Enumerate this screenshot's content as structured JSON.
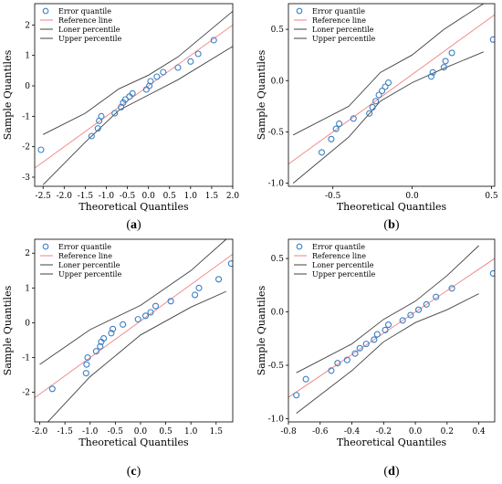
{
  "colors": {
    "marker": "#3a7fc4",
    "reference": "#f08080",
    "bounds": "#404040",
    "frame": "#000000"
  },
  "chart_data": [
    {
      "panel": "(a)",
      "panel_letter": "a",
      "type": "scatter",
      "xlabel": "Theoretical Quantiles",
      "ylabel": "Sample Quantiles",
      "xlim": [
        -2.7,
        2.0
      ],
      "ylim": [
        -3.3,
        2.7
      ],
      "xticks": [
        -2.5,
        -2.0,
        -1.5,
        -1.0,
        -0.5,
        0.0,
        0.5,
        1.0,
        1.5,
        2.0
      ],
      "yticks": [
        -3,
        -2,
        -1,
        0,
        1,
        2
      ],
      "tick_decimals_x": 1,
      "tick_decimals_y": 0,
      "legend": [
        "Error quantile",
        "Reference line",
        "Loner percentile",
        "Upper percentile"
      ],
      "legend_position": "top-left",
      "reference_line": {
        "slope": 1.0,
        "intercept": 0.0
      },
      "band": {
        "lower": [
          [
            -2.5,
            -3.25
          ],
          [
            -1.5,
            -1.85
          ],
          [
            -0.7,
            -0.8
          ],
          [
            0.0,
            -0.3
          ],
          [
            0.7,
            0.2
          ],
          [
            2.0,
            1.3
          ]
        ],
        "upper": [
          [
            -2.5,
            -1.6
          ],
          [
            -1.5,
            -0.9
          ],
          [
            -0.7,
            -0.1
          ],
          [
            0.0,
            0.35
          ],
          [
            0.7,
            0.95
          ],
          [
            2.0,
            2.45
          ]
        ]
      },
      "points": [
        [
          -2.55,
          -2.1
        ],
        [
          -1.35,
          -1.65
        ],
        [
          -1.2,
          -1.4
        ],
        [
          -1.17,
          -1.15
        ],
        [
          -1.12,
          -1.0
        ],
        [
          -0.8,
          -0.9
        ],
        [
          -0.65,
          -0.7
        ],
        [
          -0.6,
          -0.55
        ],
        [
          -0.55,
          -0.45
        ],
        [
          -0.45,
          -0.35
        ],
        [
          -0.38,
          -0.25
        ],
        [
          -0.05,
          -0.12
        ],
        [
          0.02,
          0.0
        ],
        [
          0.05,
          0.15
        ],
        [
          0.2,
          0.3
        ],
        [
          0.35,
          0.45
        ],
        [
          0.7,
          0.6
        ],
        [
          1.0,
          0.8
        ],
        [
          1.18,
          1.05
        ],
        [
          1.55,
          1.5
        ]
      ]
    },
    {
      "panel": "(b)",
      "panel_letter": "b",
      "type": "scatter",
      "xlabel": "Theoretical Quantiles",
      "ylabel": "Sample Quantiles",
      "xlim": [
        -0.78,
        0.52
      ],
      "ylim": [
        -1.03,
        0.75
      ],
      "xticks": [
        -0.5,
        0.0,
        0.5
      ],
      "yticks": [
        -1.0,
        -0.5,
        0.0,
        0.5
      ],
      "tick_decimals_x": 1,
      "tick_decimals_y": 1,
      "legend": [
        "Error quantile",
        "Reference line",
        "Loner percentile",
        "Upper percentile"
      ],
      "legend_position": "top-left",
      "reference_line": {
        "slope": 1.12,
        "intercept": 0.06
      },
      "band": {
        "lower": [
          [
            -0.75,
            -1.0
          ],
          [
            -0.4,
            -0.55
          ],
          [
            -0.2,
            -0.2
          ],
          [
            0.0,
            -0.02
          ],
          [
            0.2,
            0.12
          ],
          [
            0.45,
            0.28
          ]
        ],
        "upper": [
          [
            -0.75,
            -0.53
          ],
          [
            -0.4,
            -0.25
          ],
          [
            -0.2,
            0.08
          ],
          [
            0.0,
            0.25
          ],
          [
            0.2,
            0.5
          ],
          [
            0.45,
            0.75
          ]
        ]
      },
      "points": [
        [
          -0.57,
          -0.7
        ],
        [
          -0.51,
          -0.57
        ],
        [
          -0.48,
          -0.47
        ],
        [
          -0.46,
          -0.42
        ],
        [
          -0.37,
          -0.37
        ],
        [
          -0.27,
          -0.32
        ],
        [
          -0.25,
          -0.26
        ],
        [
          -0.23,
          -0.2
        ],
        [
          -0.21,
          -0.14
        ],
        [
          -0.19,
          -0.1
        ],
        [
          -0.17,
          -0.06
        ],
        [
          -0.15,
          -0.02
        ],
        [
          0.12,
          0.04
        ],
        [
          0.13,
          0.08
        ],
        [
          0.2,
          0.13
        ],
        [
          0.21,
          0.19
        ],
        [
          0.25,
          0.27
        ],
        [
          0.51,
          0.4
        ]
      ]
    },
    {
      "panel": "(c)",
      "panel_letter": "c",
      "type": "scatter",
      "xlabel": "Theoretical Quantiles",
      "ylabel": "Sample Quantiles",
      "xlim": [
        -2.1,
        1.83
      ],
      "ylim": [
        -2.85,
        2.4
      ],
      "xticks": [
        -2.0,
        -1.5,
        -1.0,
        -0.5,
        0.0,
        0.5,
        1.0,
        1.5
      ],
      "yticks": [
        -2,
        -1,
        0,
        1,
        2
      ],
      "tick_decimals_x": 1,
      "tick_decimals_y": 0,
      "legend": [
        "Error quantile",
        "Reference line",
        "Loner percentile",
        "Upper percentile"
      ],
      "legend_position": "top-left",
      "reference_line": {
        "slope": 1.05,
        "intercept": 0.05
      },
      "band": {
        "lower": [
          [
            -2.0,
            -3.1
          ],
          [
            -1.0,
            -1.55
          ],
          [
            0.0,
            -0.35
          ],
          [
            1.0,
            0.45
          ],
          [
            1.7,
            0.9
          ]
        ],
        "upper": [
          [
            -2.0,
            -1.2
          ],
          [
            -1.0,
            -0.2
          ],
          [
            0.0,
            0.5
          ],
          [
            1.0,
            1.5
          ],
          [
            1.7,
            2.4
          ]
        ]
      },
      "points": [
        [
          -1.75,
          -1.9
        ],
        [
          -1.08,
          -1.45
        ],
        [
          -1.07,
          -1.2
        ],
        [
          -1.05,
          -1.0
        ],
        [
          -0.88,
          -0.82
        ],
        [
          -0.8,
          -0.68
        ],
        [
          -0.78,
          -0.55
        ],
        [
          -0.73,
          -0.45
        ],
        [
          -0.58,
          -0.3
        ],
        [
          -0.55,
          -0.18
        ],
        [
          -0.35,
          -0.05
        ],
        [
          -0.05,
          0.1
        ],
        [
          0.1,
          0.2
        ],
        [
          0.2,
          0.3
        ],
        [
          0.3,
          0.48
        ],
        [
          0.6,
          0.62
        ],
        [
          1.08,
          0.8
        ],
        [
          1.16,
          1.0
        ],
        [
          1.55,
          1.25
        ],
        [
          1.8,
          1.7
        ]
      ]
    },
    {
      "panel": "(d)",
      "panel_letter": "d",
      "type": "scatter",
      "xlabel": "Theoretical Quantiles",
      "ylabel": "Sample Quantiles",
      "xlim": [
        -0.8,
        0.5
      ],
      "ylim": [
        -1.03,
        0.68
      ],
      "xticks": [
        -0.8,
        -0.6,
        -0.4,
        -0.2,
        0.0,
        0.2,
        0.4
      ],
      "yticks": [
        -1.0,
        -0.5,
        0.0,
        0.5
      ],
      "tick_decimals_x": 1,
      "tick_decimals_y": 1,
      "legend": [
        "Error quantile",
        "Reference line",
        "Loner percentile",
        "Upper percentile"
      ],
      "legend_position": "top-left",
      "reference_line": {
        "slope": 1.0,
        "intercept": 0.0
      },
      "band": {
        "lower": [
          [
            -0.75,
            -0.95
          ],
          [
            -0.4,
            -0.55
          ],
          [
            -0.2,
            -0.28
          ],
          [
            0.0,
            -0.1
          ],
          [
            0.2,
            0.02
          ],
          [
            0.4,
            0.17
          ]
        ],
        "upper": [
          [
            -0.75,
            -0.57
          ],
          [
            -0.4,
            -0.3
          ],
          [
            -0.2,
            -0.07
          ],
          [
            0.0,
            0.1
          ],
          [
            0.2,
            0.34
          ],
          [
            0.4,
            0.62
          ]
        ]
      },
      "points": [
        [
          -0.75,
          -0.78
        ],
        [
          -0.69,
          -0.63
        ],
        [
          -0.53,
          -0.55
        ],
        [
          -0.49,
          -0.48
        ],
        [
          -0.43,
          -0.45
        ],
        [
          -0.38,
          -0.39
        ],
        [
          -0.35,
          -0.34
        ],
        [
          -0.31,
          -0.3
        ],
        [
          -0.26,
          -0.26
        ],
        [
          -0.24,
          -0.21
        ],
        [
          -0.19,
          -0.17
        ],
        [
          -0.17,
          -0.12
        ],
        [
          -0.08,
          -0.08
        ],
        [
          -0.03,
          -0.03
        ],
        [
          0.02,
          0.02
        ],
        [
          0.07,
          0.07
        ],
        [
          0.13,
          0.14
        ],
        [
          0.23,
          0.22
        ],
        [
          0.49,
          0.36
        ]
      ]
    }
  ]
}
